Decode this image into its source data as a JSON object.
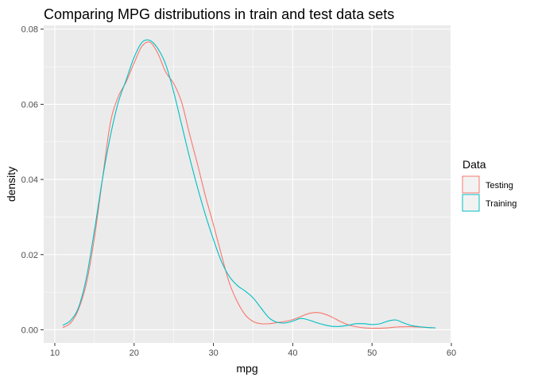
{
  "chart_data": {
    "type": "line",
    "title": "Comparing MPG distributions in train and test data sets",
    "xlabel": "mpg",
    "ylabel": "density",
    "xlim": [
      8.6,
      59.9
    ],
    "ylim": [
      -0.0035,
      0.081
    ],
    "x_ticks": [
      10,
      20,
      30,
      40,
      50,
      60
    ],
    "y_ticks": [
      0.0,
      0.02,
      0.04,
      0.06,
      0.08
    ],
    "x_tick_labels": [
      "10",
      "20",
      "30",
      "40",
      "50",
      "60"
    ],
    "y_tick_labels": [
      "0.00",
      "0.02",
      "0.04",
      "0.06",
      "0.08"
    ],
    "grid": true,
    "panel_background": "#ebebeb",
    "legend": {
      "title": "Data",
      "position": "right",
      "entries": [
        "Testing",
        "Training"
      ]
    },
    "series": [
      {
        "name": "Testing",
        "color": "#f8766d",
        "x": [
          11,
          12,
          13,
          14,
          15,
          16,
          17,
          18,
          19,
          20,
          21,
          22,
          23,
          24,
          25,
          26,
          27,
          28,
          29,
          30,
          31,
          32,
          33,
          34,
          35,
          36,
          37,
          38,
          39,
          40,
          41,
          42,
          43,
          44,
          45,
          46,
          47,
          48,
          49,
          50,
          51,
          52,
          53,
          54,
          55,
          56,
          57,
          58
        ],
        "values": [
          0.0006,
          0.0018,
          0.0055,
          0.0125,
          0.0245,
          0.04,
          0.055,
          0.062,
          0.066,
          0.071,
          0.0755,
          0.0765,
          0.0735,
          0.0685,
          0.0655,
          0.0605,
          0.052,
          0.044,
          0.0355,
          0.028,
          0.02,
          0.0125,
          0.0075,
          0.004,
          0.0022,
          0.0016,
          0.0016,
          0.0019,
          0.0022,
          0.0027,
          0.0035,
          0.0043,
          0.0046,
          0.0042,
          0.0033,
          0.0022,
          0.0013,
          0.0008,
          0.0005,
          0.0004,
          0.0004,
          0.0005,
          0.0007,
          0.0008,
          0.0008,
          0.0007,
          0.0006,
          0.0005
        ]
      },
      {
        "name": "Training",
        "color": "#00bfc4",
        "x": [
          11,
          12,
          13,
          14,
          15,
          16,
          17,
          18,
          19,
          20,
          21,
          22,
          23,
          24,
          25,
          26,
          27,
          28,
          29,
          30,
          31,
          32,
          33,
          34,
          35,
          36,
          37,
          38,
          39,
          40,
          41,
          42,
          43,
          44,
          45,
          46,
          47,
          48,
          49,
          50,
          51,
          52,
          53,
          54,
          55,
          56,
          57,
          58
        ],
        "values": [
          0.0012,
          0.0025,
          0.006,
          0.014,
          0.0265,
          0.04,
          0.0515,
          0.0605,
          0.0665,
          0.0725,
          0.0765,
          0.077,
          0.0748,
          0.0705,
          0.0632,
          0.0545,
          0.0458,
          0.0378,
          0.0305,
          0.024,
          0.0182,
          0.0142,
          0.0118,
          0.0103,
          0.0085,
          0.0058,
          0.0032,
          0.002,
          0.0018,
          0.0023,
          0.003,
          0.0026,
          0.0019,
          0.0013,
          0.0009,
          0.0009,
          0.0012,
          0.0016,
          0.0016,
          0.0014,
          0.0016,
          0.0023,
          0.0026,
          0.0018,
          0.0011,
          0.0008,
          0.0006,
          0.0005
        ]
      }
    ]
  }
}
